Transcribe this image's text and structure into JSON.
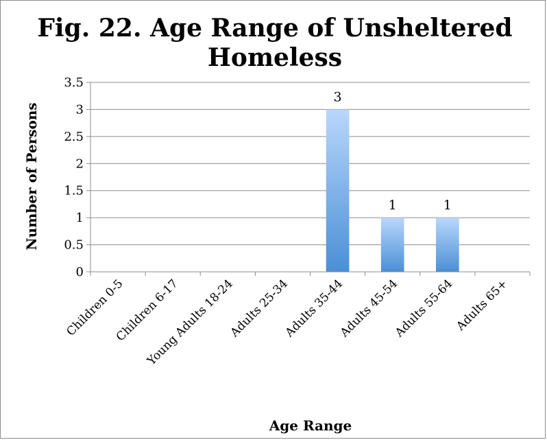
{
  "chart_data": {
    "type": "bar",
    "title_lines": [
      "Fig. 22. Age Range of Unsheltered",
      "Homeless"
    ],
    "xlabel": "Age Range",
    "ylabel": "Number of Persons",
    "categories": [
      "Children 0-5",
      "Children 6-17",
      "Young Adults 18-24",
      "Adults 25-34",
      "Adults 35-44",
      "Adults 45-54",
      "Adults 55-64",
      "Adults 65+"
    ],
    "values": [
      0,
      0,
      0,
      0,
      3,
      1,
      1,
      0
    ],
    "data_labels": [
      "",
      "",
      "",
      "",
      "3",
      "1",
      "1",
      ""
    ],
    "ylim": [
      0,
      3.5
    ],
    "yticks": [
      "0",
      "0.5",
      "1",
      "1.5",
      "2",
      "2.5",
      "3",
      "3.5"
    ],
    "grid": true,
    "legend": "none",
    "bar_color_top": "#b9d7fb",
    "bar_color_bottom": "#4a8fd6"
  }
}
